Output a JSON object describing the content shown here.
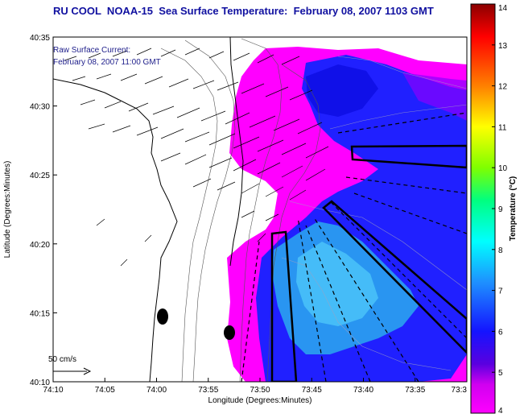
{
  "title": "RU COOL  NOAA-15  Sea Surface Temperature:  February 08, 2007 1103 GMT",
  "annotation_lines": [
    "Raw Surface Current:",
    "February 08, 2007 11:00 GMT"
  ],
  "scale_label": "50 cm/s",
  "colors": {
    "title": "#1010a0",
    "land": "#ffffff",
    "axes": "#000000"
  },
  "chart_data": {
    "type": "heatmap",
    "title": "RU COOL  NOAA-15  Sea Surface Temperature:  February 08, 2007 1103 GMT",
    "xlabel": "Longitude (Degrees:Minutes)",
    "ylabel": "Latitude (Degrees:Minutes)",
    "x_ticks": [
      "74:10",
      "74:05",
      "74:00",
      "73:55",
      "73:50",
      "73:45",
      "73:40",
      "73:35",
      "73:3"
    ],
    "y_ticks": [
      "40:10",
      "40:15",
      "40:20",
      "40:25",
      "40:30",
      "40:35"
    ],
    "colorbar": {
      "label": "Temperature (°C)",
      "min": 4,
      "max": 14,
      "ticks": [
        "4",
        "5",
        "6",
        "7",
        "8",
        "9",
        "10",
        "11",
        "12",
        "13",
        "14"
      ]
    }
  }
}
